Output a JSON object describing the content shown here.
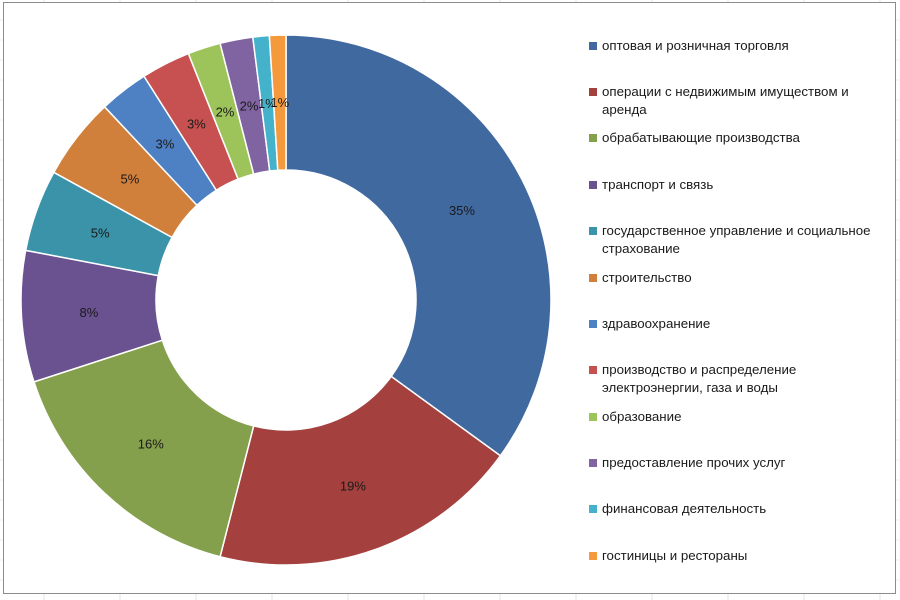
{
  "chart_data": {
    "type": "pie",
    "variant": "donut",
    "categories": [
      "оптовая и розничная торговля",
      "операции с недвижимым имуществом и аренда",
      "обрабатывающие производства",
      "транспорт и связь",
      "государственное управление и социальное страхование",
      "строительство",
      "здравоохранение",
      "производство и распределение электроэнергии, газа и воды",
      "образование",
      "предоставление прочих  услуг",
      "финансовая деятельность",
      "гостиницы и рестораны"
    ],
    "values": [
      35,
      19,
      16,
      8,
      5,
      5,
      3,
      3,
      2,
      2,
      1,
      1
    ],
    "data_labels": [
      "35%",
      "19%",
      "16%",
      "8%",
      "5%",
      "5%",
      "3%",
      "3%",
      "2%",
      "2%",
      "1%",
      "1%"
    ],
    "colors": [
      "#4069A0",
      "#A4403D",
      "#84A04C",
      "#6A5190",
      "#3A93A8",
      "#D0803B",
      "#4E81C4",
      "#C65150",
      "#9DC45B",
      "#8064A2",
      "#45B2CB",
      "#F59A3C"
    ],
    "legend_position": "right",
    "title": ""
  }
}
